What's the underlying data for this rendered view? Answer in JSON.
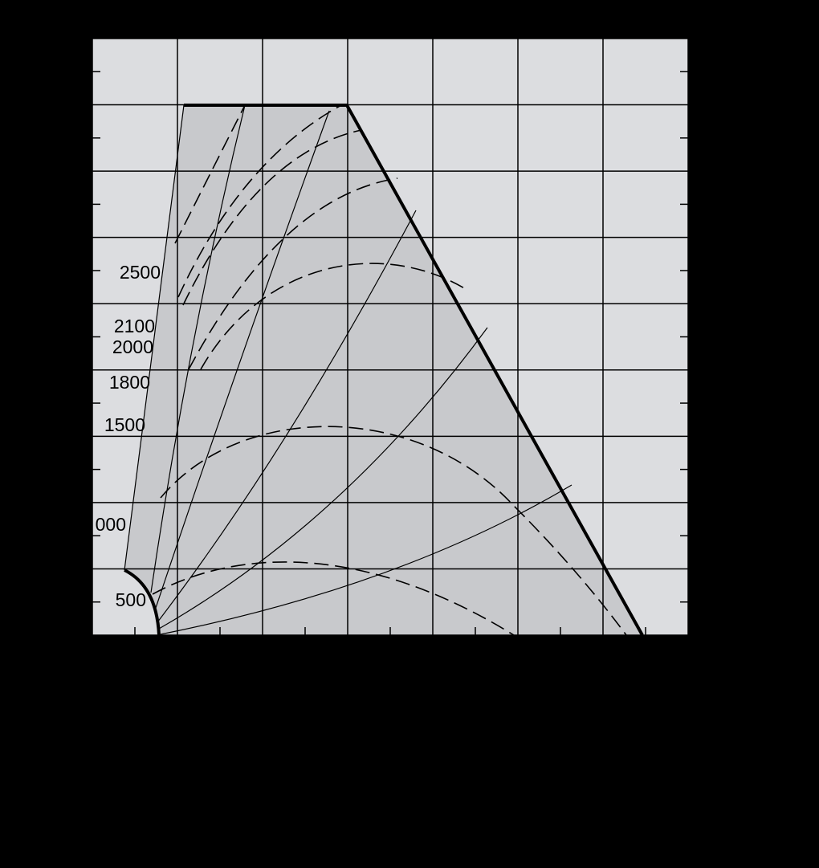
{
  "labels": [
    "2500",
    "2100",
    "2000",
    "1800",
    "1500",
    "000",
    "500"
  ]
}
